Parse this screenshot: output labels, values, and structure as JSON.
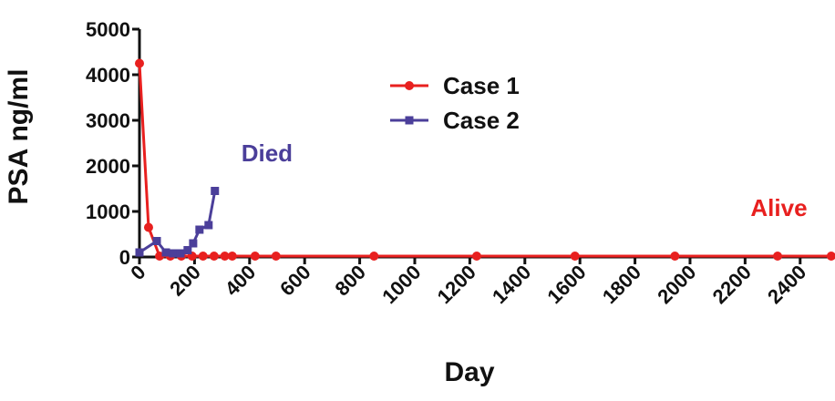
{
  "chart_data": {
    "type": "line",
    "x_label": "Day",
    "y_label": "PSA ng/ml",
    "xlim": [
      0,
      2520
    ],
    "ylim": [
      0,
      5000
    ],
    "xticks": [
      0,
      200,
      400,
      600,
      800,
      1000,
      1200,
      1400,
      1600,
      1800,
      2000,
      2200,
      2400
    ],
    "yticks": [
      0,
      1000,
      2000,
      3000,
      4000,
      5000
    ],
    "series": [
      {
        "name": "Case 1",
        "color": "#e8201f",
        "marker": "circle",
        "x": [
          0,
          33,
          73,
          112,
          152,
          191,
          231,
          271,
          310,
          337,
          420,
          496,
          852,
          1225,
          1582,
          1945,
          2318,
          2513
        ],
        "values": [
          4250,
          650,
          20,
          20,
          20,
          20,
          20,
          20,
          20,
          20,
          20,
          20,
          20,
          20,
          20,
          20,
          20,
          20
        ]
      },
      {
        "name": "Case 2",
        "color": "#4b3f9a",
        "marker": "square",
        "x": [
          0,
          63,
          96,
          122,
          149,
          175,
          195,
          218,
          251,
          274
        ],
        "values": [
          100,
          350,
          100,
          80,
          80,
          150,
          300,
          600,
          700,
          1450
        ]
      }
    ],
    "annotations": [
      {
        "text": "Died",
        "color": "#4b3f9a",
        "x": 370,
        "y": 2100
      },
      {
        "text": "Alive",
        "color": "#e8201f",
        "x": 2220,
        "y": 900
      }
    ]
  }
}
